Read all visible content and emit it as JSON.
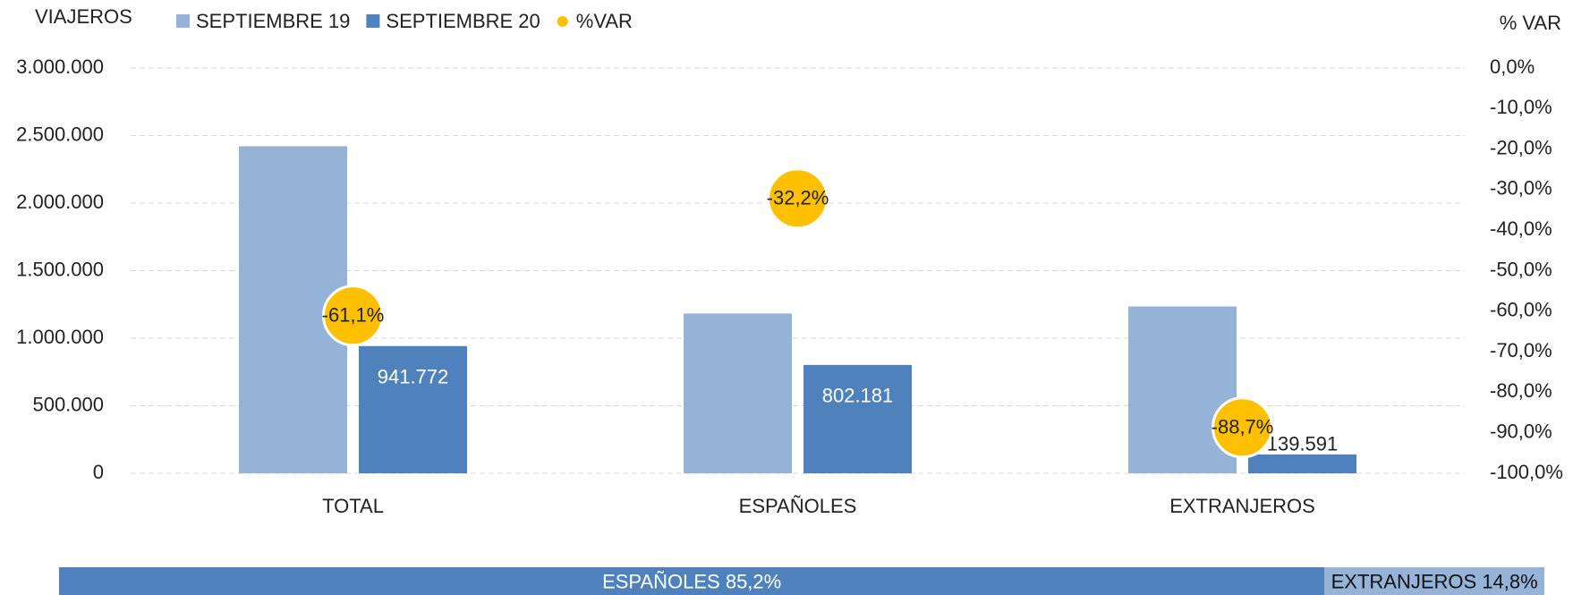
{
  "chart_data": [
    {
      "type": "bar",
      "y_axis_title": "VIAJEROS",
      "y2_axis_title": "% VAR",
      "categories": [
        "TOTAL",
        "ESPAÑOLES",
        "EXTRANJEROS"
      ],
      "series": [
        {
          "name": "SEPTIEMBRE 19",
          "color": "#95b3d7",
          "values": [
            2421000,
            1183000,
            1235000
          ]
        },
        {
          "name": "SEPTIEMBRE 20",
          "color": "#4f81bd",
          "values": [
            941772,
            802181,
            139591
          ],
          "value_labels": [
            "941.772",
            "802.181",
            "139.591"
          ]
        },
        {
          "name": "%VAR",
          "color": "#ffc000",
          "axis": "y2",
          "values": [
            -61.1,
            -32.2,
            -88.7
          ],
          "value_labels": [
            "-61,1%",
            "-32,2%",
            "-88,7%"
          ]
        }
      ],
      "ylim": [
        0,
        3000000
      ],
      "yticks": [
        0,
        {
          "value": 500000,
          "label": "500.000"
        },
        {
          "value": 1000000,
          "label": "1.000.000"
        },
        {
          "value": 1500000,
          "label": "1.500.000"
        },
        {
          "value": 2000000,
          "label": "2.000.000"
        },
        {
          "value": 2500000,
          "label": "2.500.000"
        },
        {
          "value": 3000000,
          "label": "3.000.000"
        }
      ],
      "y2lim": [
        -100,
        0
      ],
      "y2ticks": [
        {
          "value": 0,
          "label": "0,0%"
        },
        {
          "value": -10,
          "label": "-10,0%"
        },
        {
          "value": -20,
          "label": "-20,0%"
        },
        {
          "value": -30,
          "label": "-30,0%"
        },
        {
          "value": -40,
          "label": "-40,0%"
        },
        {
          "value": -50,
          "label": "-50,0%"
        },
        {
          "value": -60,
          "label": "-60,0%"
        },
        {
          "value": -70,
          "label": "-70,0%"
        },
        {
          "value": -80,
          "label": "-80,0%"
        },
        {
          "value": -90,
          "label": "-90,0%"
        },
        {
          "value": -100,
          "label": "-100,0%"
        }
      ],
      "grid": true
    },
    {
      "type": "stacked_share",
      "categories": [
        "ESPAÑOLES",
        "EXTRANJEROS"
      ],
      "values": [
        85.2,
        14.8
      ],
      "value_labels": [
        "ESPAÑOLES 85,2%",
        "EXTRANJEROS 14,8%"
      ],
      "colors": [
        "#4f81bd",
        "#95b3d7"
      ]
    }
  ]
}
